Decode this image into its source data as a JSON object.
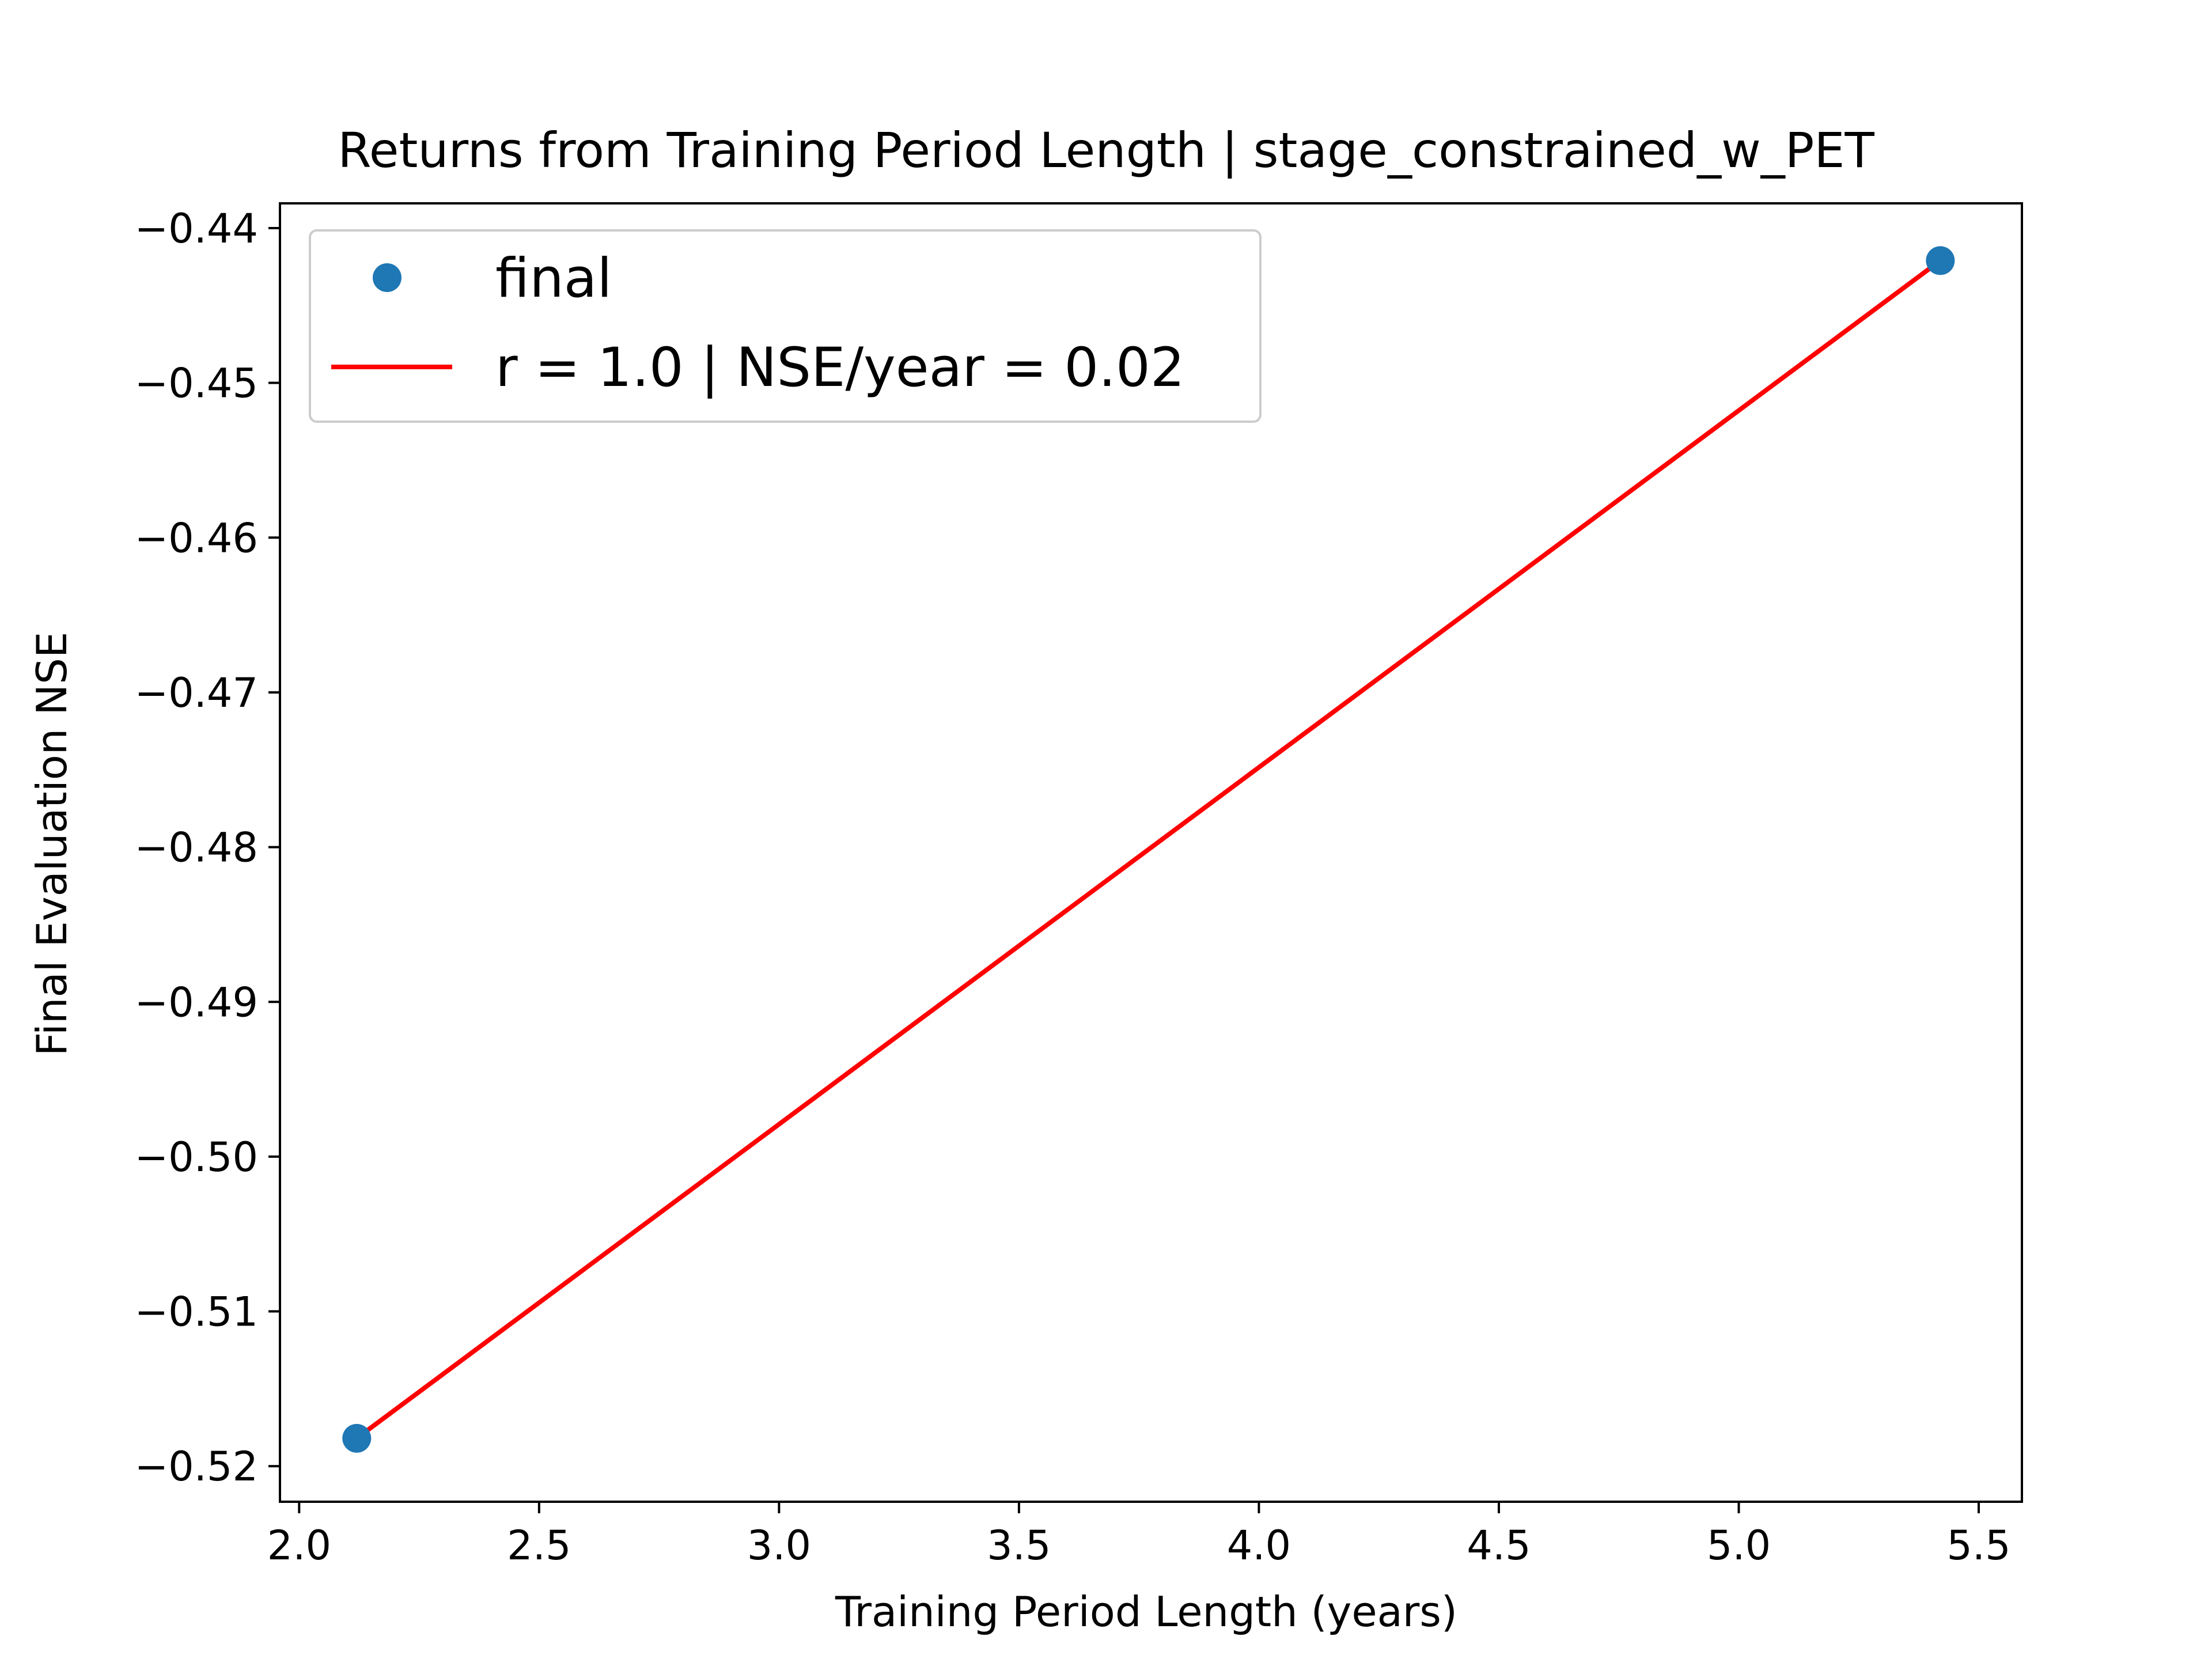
{
  "chart_data": {
    "type": "scatter",
    "title": "Returns from Training Period Length | stage_constrained_w_PET",
    "xlabel": "Training Period Length (years)",
    "ylabel": "Final Evaluation NSE",
    "xlim": [
      1.96,
      5.59
    ],
    "ylim": [
      -0.5223,
      -0.4384
    ],
    "x_ticks": [
      2.0,
      2.5,
      3.0,
      3.5,
      4.0,
      4.5,
      5.0,
      5.5
    ],
    "x_tick_labels": [
      "2.0",
      "2.5",
      "3.0",
      "3.5",
      "4.0",
      "4.5",
      "5.0",
      "5.5"
    ],
    "y_ticks": [
      -0.44,
      -0.45,
      -0.46,
      -0.47,
      -0.48,
      -0.49,
      -0.5,
      -0.51,
      -0.52
    ],
    "y_tick_labels": [
      "−0.44",
      "−0.45",
      "−0.46",
      "−0.47",
      "−0.48",
      "−0.49",
      "−0.50",
      "−0.51",
      "−0.52"
    ],
    "grid": false,
    "legend_position": "top-left",
    "series": [
      {
        "name": "final",
        "type": "scatter",
        "color": "#1f77b4",
        "x": [
          2.12,
          5.42
        ],
        "y": [
          -0.5182,
          -0.4421
        ]
      },
      {
        "name": "r = 1.0 | NSE/year = 0.02",
        "type": "line",
        "color": "#ff0000",
        "x": [
          2.12,
          5.42
        ],
        "y": [
          -0.5182,
          -0.4421
        ]
      }
    ]
  }
}
